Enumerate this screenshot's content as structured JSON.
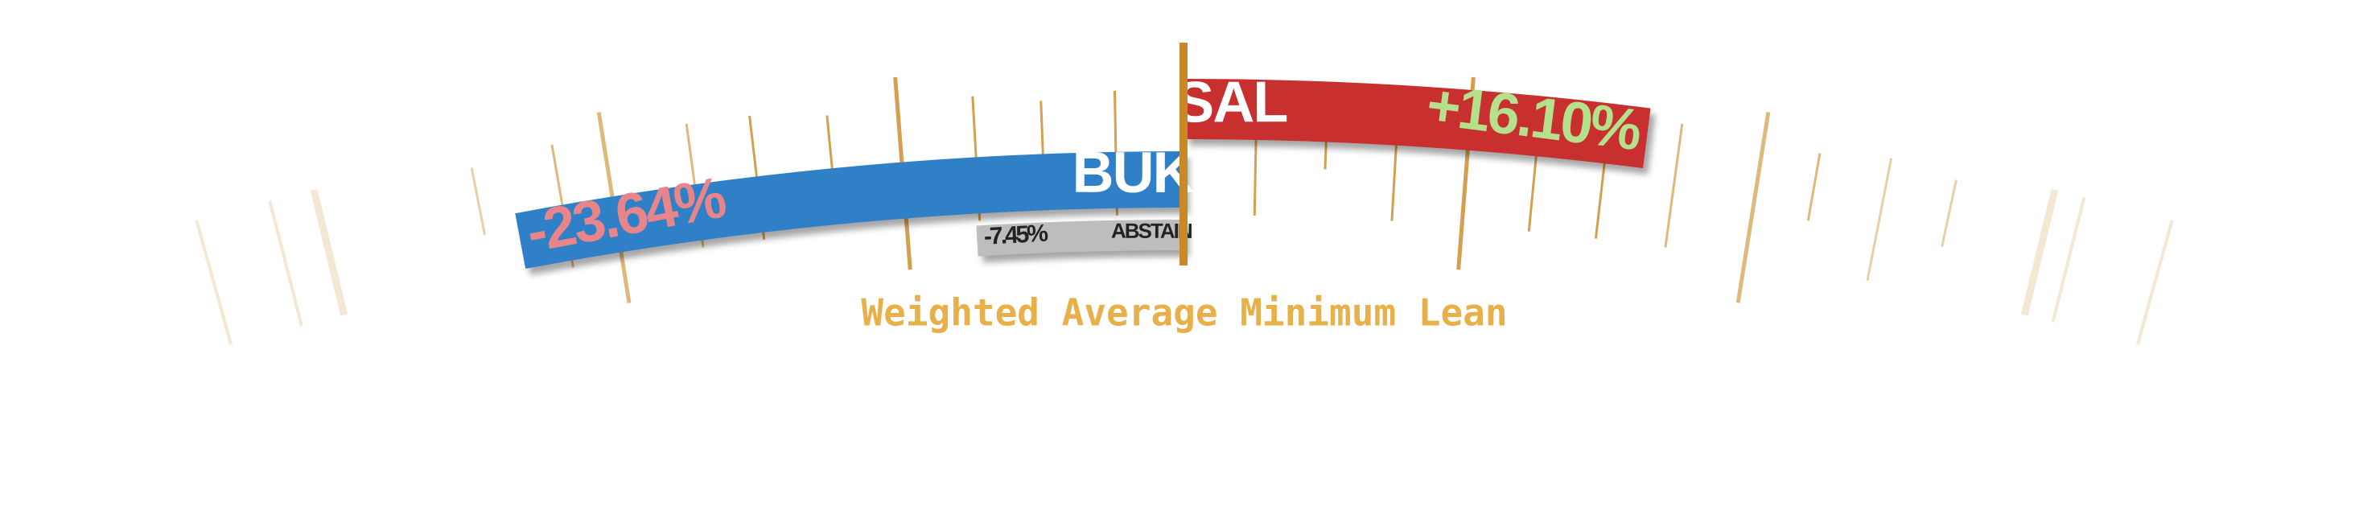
{
  "title": "Weighted Average Minimum Lean",
  "bars": [
    {
      "name": "BUK",
      "value": -23.64,
      "label": "-23.64%",
      "color": "#2f80c6",
      "label_color": "#e8858a"
    },
    {
      "name": "SAL",
      "value": 16.1,
      "label": "+16.10%",
      "color": "#c8302f",
      "label_color": "#b5e08c"
    },
    {
      "name": "ABSTAIN",
      "value": -7.45,
      "label": "-7.45%",
      "color": "#bdbdbd",
      "label_color": "#222222"
    }
  ]
}
